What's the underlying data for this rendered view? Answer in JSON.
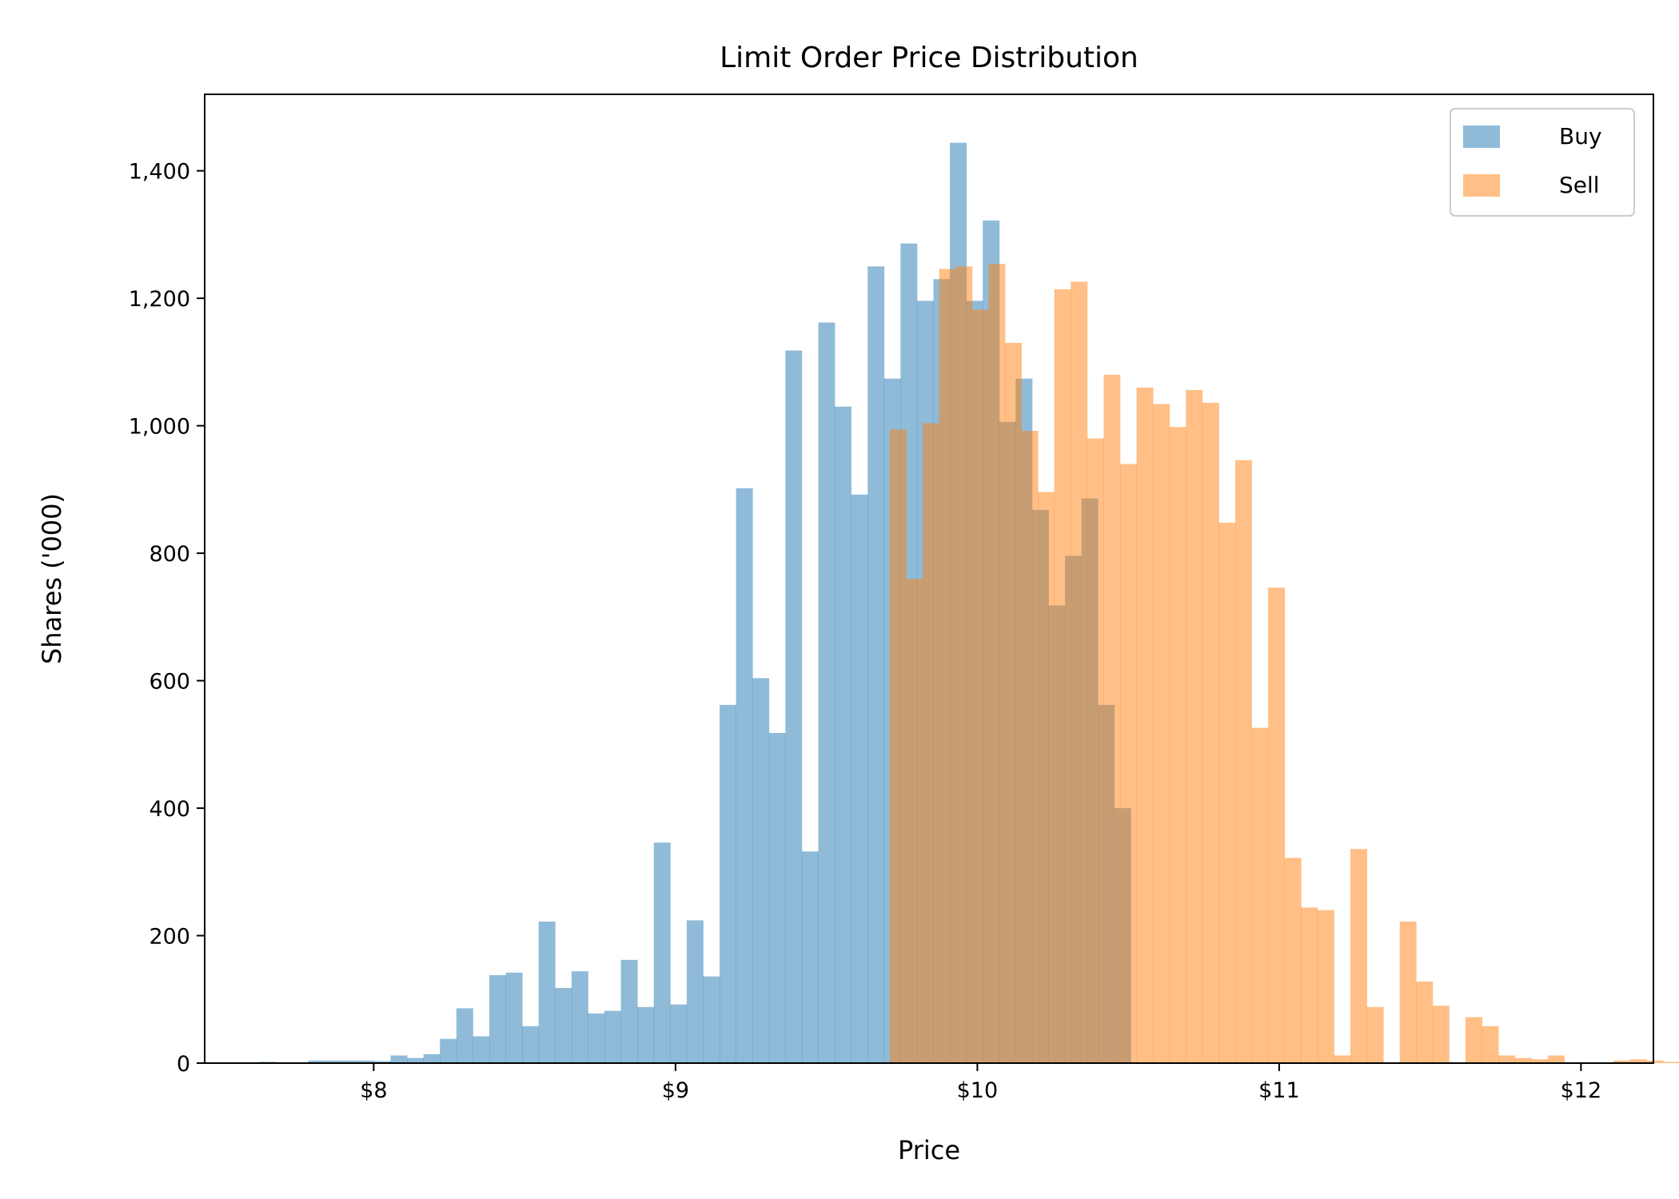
{
  "chart_data": {
    "type": "bar",
    "subtype": "overlapping-histogram",
    "title": "Limit Order Price Distribution",
    "xlabel": "Price",
    "ylabel": "Shares ('000)",
    "xlim": [
      7.44,
      12.24
    ],
    "ylim": [
      0,
      1520
    ],
    "x_ticks": [
      8,
      9,
      10,
      11,
      12
    ],
    "x_tick_labels": [
      "$8",
      "$9",
      "$10",
      "$11",
      "$12"
    ],
    "y_ticks": [
      0,
      200,
      400,
      600,
      800,
      1000,
      1200,
      1400
    ],
    "y_tick_labels": [
      "0",
      "200",
      "400",
      "600",
      "800",
      "1,000",
      "1,200",
      "1,400"
    ],
    "grid": false,
    "legend": {
      "position": "top-right",
      "entries": [
        "Buy",
        "Sell"
      ]
    },
    "series": [
      {
        "name": "Buy",
        "color": "#1f77b4",
        "opacity": 0.5,
        "bin_start": 7.62,
        "bin_width": 0.0545,
        "values": [
          2,
          0,
          0,
          4,
          4,
          4,
          4,
          3,
          12,
          8,
          14,
          38,
          86,
          42,
          138,
          142,
          58,
          222,
          118,
          144,
          78,
          82,
          162,
          88,
          346,
          92,
          224,
          136,
          562,
          902,
          604,
          518,
          1118,
          332,
          1162,
          1030,
          892,
          1250,
          1074,
          1286,
          1196,
          1230,
          1444,
          1196,
          1322,
          1006,
          1074,
          868,
          718,
          796,
          886,
          562,
          400
        ]
      },
      {
        "name": "Sell",
        "color": "#ff7f0e",
        "opacity": 0.5,
        "bin_start": 9.71,
        "bin_width": 0.0545,
        "values": [
          994,
          760,
          1004,
          1246,
          1250,
          1182,
          1254,
          1130,
          992,
          896,
          1214,
          1226,
          980,
          1080,
          940,
          1060,
          1034,
          998,
          1056,
          1036,
          848,
          946,
          526,
          746,
          322,
          244,
          240,
          12,
          336,
          88,
          0,
          222,
          128,
          90,
          0,
          72,
          58,
          12,
          8,
          6,
          12,
          0,
          0,
          0,
          4,
          6,
          4,
          2,
          0,
          0,
          0,
          2,
          0
        ]
      }
    ]
  }
}
